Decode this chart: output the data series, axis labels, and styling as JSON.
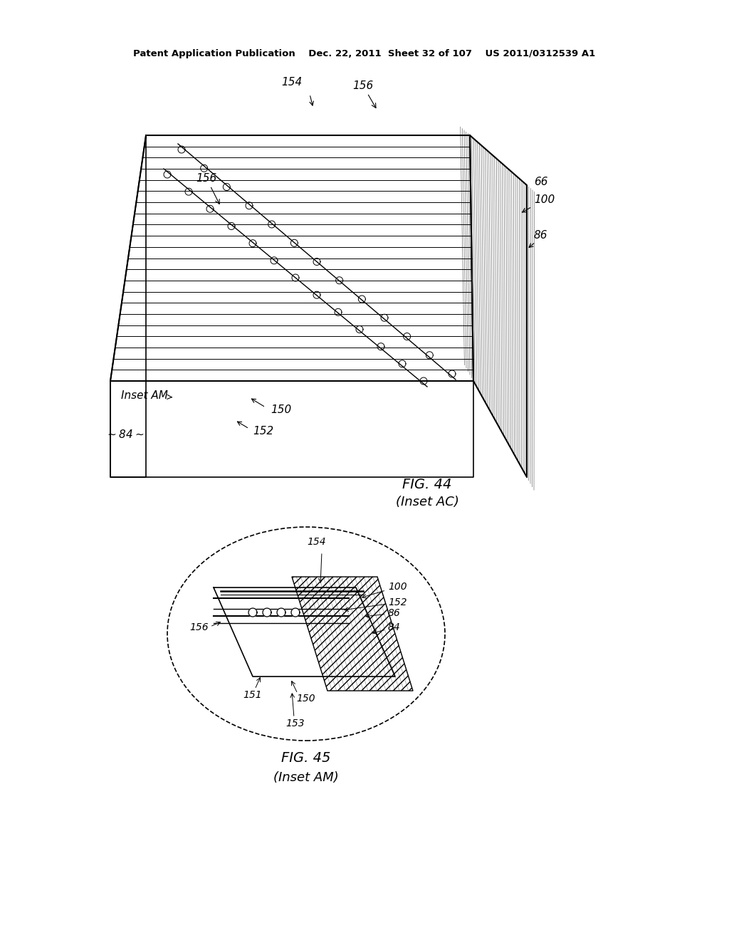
{
  "header_text": "Patent Application Publication    Dec. 22, 2011  Sheet 32 of 107    US 2011/0312539 A1",
  "fig44_caption": "FIG. 44",
  "fig44_subcaption": "(Inset AC)",
  "fig45_caption": "FIG. 45",
  "fig45_subcaption": "(Inset AM)",
  "bg_color": "#ffffff",
  "line_color": "#000000",
  "hatch_color": "#555555"
}
